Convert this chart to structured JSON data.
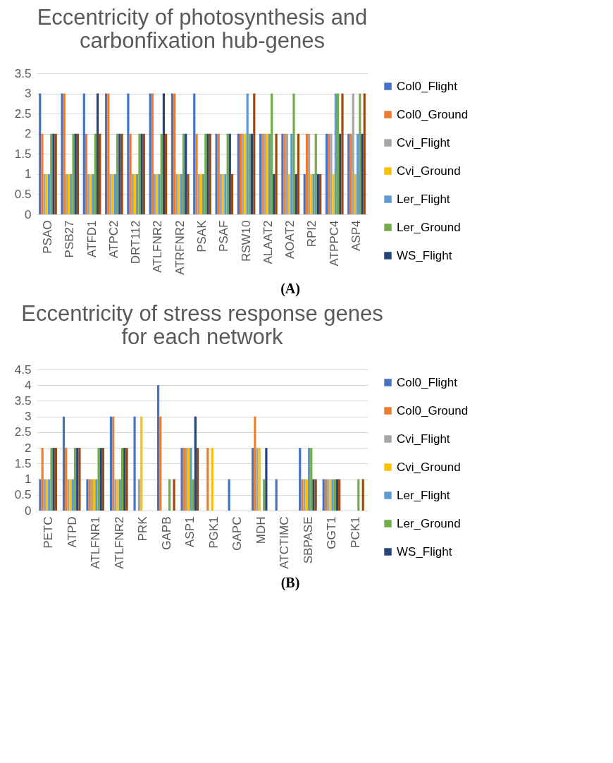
{
  "chart_data": [
    {
      "type": "bar",
      "title": "Eccentricity of photosynthesis and carbonfixation hub-genes",
      "annotations": [
        "(A)"
      ],
      "categories": [
        "PSAO",
        "PSB27",
        "ATFD1",
        "ATPC2",
        "DRT112",
        "ATLFNR2",
        "ATRFNR2",
        "PSAK",
        "PSAF",
        "RSW10",
        "ALAAT2",
        "AOAT2",
        "RPI2",
        "ATPPC4",
        "ASP4"
      ],
      "ylim": [
        0,
        3.5
      ],
      "yticks": [
        0,
        0.5,
        1,
        1.5,
        2,
        2.5,
        3,
        3.5
      ],
      "grid": "y",
      "legend": "right",
      "series": [
        {
          "name": "Col0_Flight",
          "color": "#4472c4",
          "values": [
            3,
            3,
            3,
            3,
            3,
            3,
            3,
            3,
            2,
            2,
            2,
            2,
            1,
            2,
            2
          ]
        },
        {
          "name": "Col0_Ground",
          "color": "#ed7d31",
          "values": [
            2,
            3,
            2,
            3,
            2,
            3,
            3,
            2,
            2,
            2,
            2,
            2,
            2,
            2,
            2
          ]
        },
        {
          "name": "Cvi_Flight",
          "color": "#a5a5a5",
          "values": [
            1,
            1,
            1,
            1,
            1,
            1,
            1,
            1,
            1,
            2,
            2,
            2,
            2,
            2,
            3
          ]
        },
        {
          "name": "Cvi_Ground",
          "color": "#ffc000",
          "values": [
            1,
            1,
            1,
            1,
            1,
            1,
            1,
            1,
            1,
            2,
            2,
            1,
            1,
            1,
            1
          ]
        },
        {
          "name": "Ler_Flight",
          "color": "#5b9bd5",
          "values": [
            1,
            1,
            1,
            1,
            1,
            1,
            1,
            1,
            1,
            3,
            2,
            2,
            1,
            3,
            2
          ]
        },
        {
          "name": "Ler_Ground",
          "color": "#70ad47",
          "values": [
            2,
            2,
            2,
            2,
            2,
            2,
            2,
            2,
            2,
            2,
            3,
            3,
            2,
            3,
            3
          ]
        },
        {
          "name": "WS_Flight",
          "color": "#264478",
          "values": [
            2,
            2,
            3,
            2,
            2,
            3,
            2,
            2,
            2,
            2,
            1,
            1,
            1,
            2,
            2
          ]
        },
        {
          "color": "#9e480e",
          "values": [
            2,
            2,
            2,
            2,
            2,
            2,
            1,
            2,
            1,
            3,
            2,
            2,
            1,
            3,
            3
          ]
        }
      ]
    },
    {
      "type": "bar",
      "title": "Eccentricity of stress response genes for each network",
      "annotations": [
        "(B)"
      ],
      "categories": [
        "PETC",
        "ATPD",
        "ATLFNR1",
        "ATLFNR2",
        "PRK",
        "GAPB",
        "ASP1",
        "PGK1",
        "GAPC",
        "MDH",
        "ATCTIMC",
        "SBPASE",
        "GGT1",
        "PCK1"
      ],
      "ylim": [
        0,
        4.5
      ],
      "yticks": [
        0,
        0.5,
        1,
        1.5,
        2,
        2.5,
        3,
        3.5,
        4,
        4.5
      ],
      "grid": "y",
      "legend": "right",
      "series": [
        {
          "name": "Col0_Flight",
          "color": "#4472c4",
          "values": [
            1,
            3,
            1,
            3,
            3,
            4,
            2,
            0,
            1,
            2,
            1,
            2,
            1,
            0
          ]
        },
        {
          "name": "Col0_Ground",
          "color": "#ed7d31",
          "values": [
            2,
            2,
            1,
            3,
            0,
            3,
            2,
            2,
            0,
            3,
            0,
            1,
            1,
            0
          ]
        },
        {
          "name": "Cvi_Flight",
          "color": "#a5a5a5",
          "values": [
            1,
            1,
            1,
            1,
            1,
            0,
            2,
            0,
            0,
            2,
            0,
            1,
            1,
            0
          ]
        },
        {
          "name": "Cvi_Ground",
          "color": "#ffc000",
          "values": [
            1,
            1,
            1,
            1,
            3,
            0,
            2,
            2,
            0,
            2,
            0,
            1,
            1,
            0
          ]
        },
        {
          "name": "Ler_Flight",
          "color": "#5b9bd5",
          "values": [
            1,
            1,
            1,
            1,
            0,
            0,
            2,
            0,
            0,
            0,
            0,
            2,
            1,
            0
          ]
        },
        {
          "name": "Ler_Ground",
          "color": "#70ad47",
          "values": [
            2,
            2,
            2,
            2,
            0,
            1,
            1,
            0,
            0,
            1,
            0,
            2,
            1,
            1
          ]
        },
        {
          "name": "WS_Flight",
          "color": "#264478",
          "values": [
            2,
            2,
            2,
            2,
            0,
            0,
            3,
            0,
            0,
            2,
            0,
            1,
            1,
            0
          ]
        },
        {
          "color": "#9e480e",
          "values": [
            2,
            2,
            2,
            2,
            0,
            1,
            2,
            0,
            0,
            0,
            0,
            1,
            1,
            1
          ]
        }
      ]
    }
  ]
}
